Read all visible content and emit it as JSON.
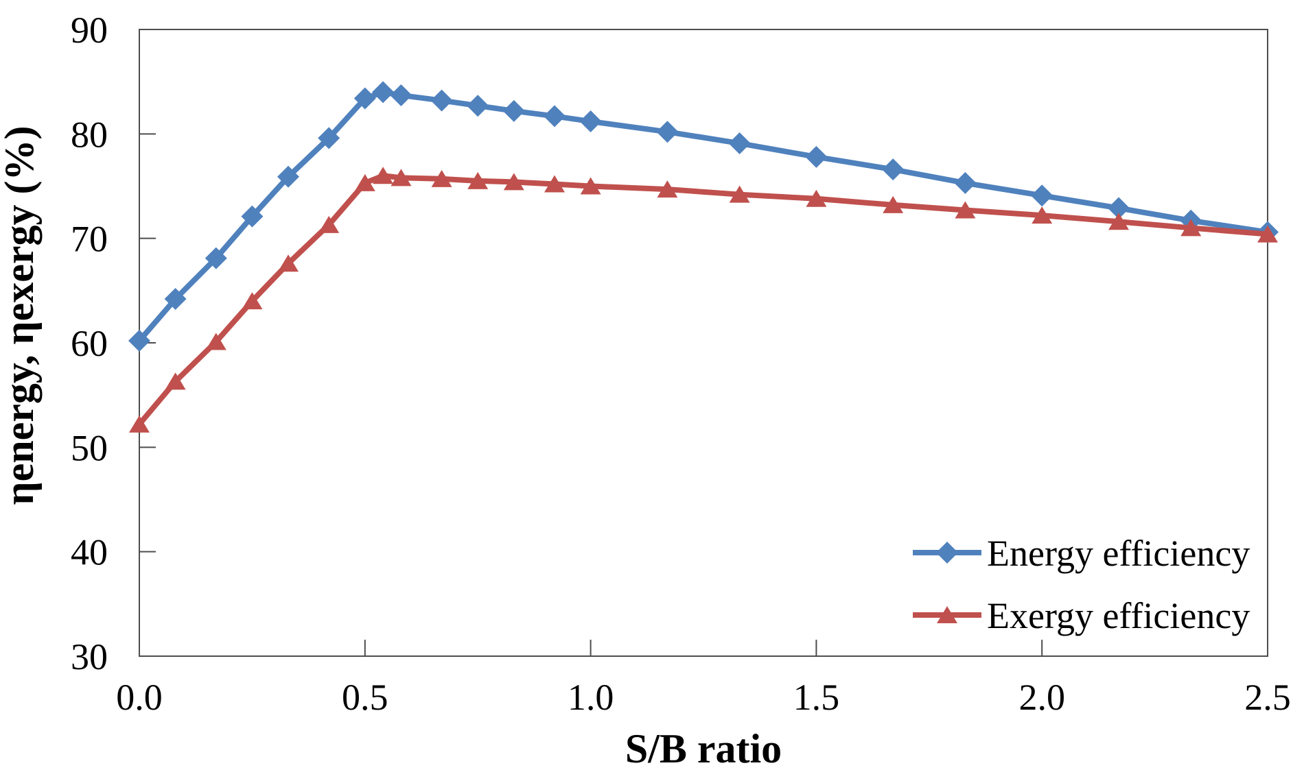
{
  "chart_data": {
    "type": "line",
    "title": "",
    "xlabel": "S/B ratio",
    "ylabel": "ηenergy, ηexergy (%)",
    "xlim": [
      0,
      2.5
    ],
    "ylim": [
      30,
      90
    ],
    "x_tick_labels": [
      "0.0",
      "0.5",
      "1.0",
      "1.5",
      "2.0",
      "2.5"
    ],
    "x_tick_values": [
      0,
      0.5,
      1.0,
      1.5,
      2.0,
      2.5
    ],
    "y_tick_labels": [
      "30",
      "40",
      "50",
      "60",
      "70",
      "80",
      "90"
    ],
    "y_tick_values": [
      30,
      40,
      50,
      60,
      70,
      80,
      90
    ],
    "grid": false,
    "legend_position": "inside-bottom-right",
    "x": [
      0,
      0.08,
      0.17,
      0.25,
      0.33,
      0.42,
      0.5,
      0.54,
      0.58,
      0.67,
      0.75,
      0.83,
      0.92,
      1.0,
      1.17,
      1.33,
      1.5,
      1.67,
      1.83,
      2.0,
      2.17,
      2.33,
      2.5
    ],
    "series": [
      {
        "name": "Energy efficiency",
        "color": "#4F81BD",
        "marker": "diamond",
        "values": [
          60.2,
          64.2,
          68.1,
          72.1,
          75.9,
          79.6,
          83.4,
          84.0,
          83.7,
          83.2,
          82.7,
          82.2,
          81.7,
          81.2,
          80.2,
          79.1,
          77.8,
          76.6,
          75.3,
          74.1,
          72.9,
          71.7,
          70.6
        ]
      },
      {
        "name": "Exergy efficiency",
        "color": "#C0504D",
        "marker": "triangle",
        "values": [
          52.2,
          56.3,
          60.1,
          64.0,
          67.6,
          71.3,
          75.3,
          76.0,
          75.8,
          75.7,
          75.5,
          75.4,
          75.2,
          75.0,
          74.7,
          74.2,
          73.8,
          73.2,
          72.7,
          72.2,
          71.6,
          71.0,
          70.4
        ]
      }
    ]
  }
}
